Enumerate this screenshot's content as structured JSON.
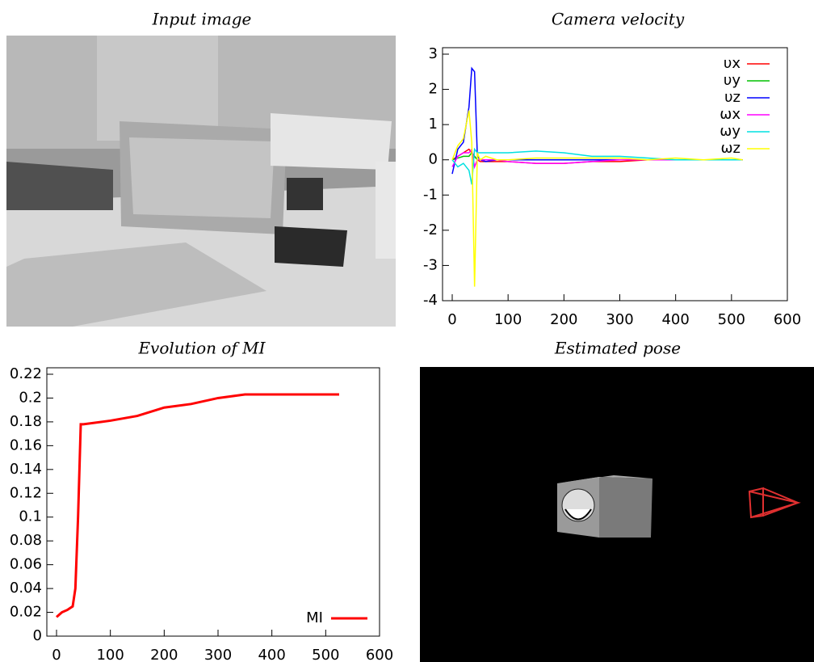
{
  "panels": {
    "input_image": {
      "title": "Input image"
    },
    "estimated_pose": {
      "title": "Estimated pose"
    }
  },
  "chart_data": [
    {
      "type": "line",
      "title": "Camera velocity",
      "x": [
        0,
        10,
        20,
        30,
        35,
        40,
        45,
        50,
        60,
        80,
        100,
        150,
        200,
        250,
        300,
        350,
        400,
        450,
        500,
        520
      ],
      "series": [
        {
          "name": "υx",
          "color": "#ff0000",
          "values": [
            0,
            0.1,
            0.2,
            0.3,
            0.2,
            0.1,
            0,
            -0.05,
            -0.05,
            -0.05,
            -0.05,
            -0.1,
            -0.1,
            -0.05,
            -0.05,
            0,
            0,
            0,
            0,
            0
          ]
        },
        {
          "name": "υy",
          "color": "#00c000",
          "values": [
            0,
            0.05,
            0.1,
            0.1,
            0.2,
            0.1,
            0,
            0,
            0,
            0,
            0,
            0,
            0,
            0,
            0,
            0,
            0,
            0,
            0,
            0
          ]
        },
        {
          "name": "υz",
          "color": "#0000ff",
          "values": [
            -0.4,
            0.3,
            0.5,
            1.5,
            2.6,
            2.5,
            0.1,
            0,
            -0.05,
            0,
            0,
            0,
            0,
            0,
            0,
            0,
            0,
            0,
            0,
            0
          ]
        },
        {
          "name": "ωx",
          "color": "#ff00ff",
          "values": [
            -0.2,
            0.1,
            0.2,
            0.2,
            0.3,
            -0.2,
            0,
            0,
            0,
            0,
            -0.05,
            -0.1,
            -0.1,
            -0.05,
            0,
            0,
            0,
            0,
            0,
            0
          ]
        },
        {
          "name": "ωy",
          "color": "#00e0e0",
          "values": [
            0,
            -0.2,
            -0.1,
            -0.3,
            -0.7,
            0.3,
            0.2,
            0.2,
            0.2,
            0.2,
            0.2,
            0.25,
            0.2,
            0.1,
            0.1,
            0.05,
            0,
            0,
            0,
            0
          ]
        },
        {
          "name": "ωz",
          "color": "#ffff00",
          "values": [
            0,
            0.4,
            0.6,
            1.4,
            0.5,
            -3.6,
            0.2,
            0,
            0.1,
            0,
            0,
            0.05,
            0.05,
            0.05,
            0.05,
            0,
            0.05,
            0,
            0.05,
            0
          ]
        }
      ],
      "xlim": [
        0,
        600
      ],
      "xticks": [
        0,
        100,
        200,
        300,
        400,
        500,
        600
      ],
      "ylim": [
        -4,
        3
      ],
      "yticks": [
        -4,
        -3,
        -2,
        -1,
        0,
        1,
        2,
        3
      ],
      "legend": "top-right"
    },
    {
      "type": "line",
      "title": "Evolution of MI",
      "x": [
        0,
        10,
        20,
        30,
        35,
        40,
        45,
        50,
        100,
        150,
        200,
        250,
        300,
        350,
        400,
        450,
        500,
        525
      ],
      "series": [
        {
          "name": "MI",
          "color": "#ff0000",
          "values": [
            0.016,
            0.02,
            0.022,
            0.025,
            0.04,
            0.1,
            0.178,
            0.178,
            0.181,
            0.185,
            0.192,
            0.195,
            0.2,
            0.203,
            0.203,
            0.203,
            0.203,
            0.203
          ]
        }
      ],
      "xlim": [
        0,
        600
      ],
      "xticks": [
        0,
        100,
        200,
        300,
        400,
        500,
        600
      ],
      "ylim": [
        0,
        0.22
      ],
      "yticks": [
        0,
        0.02,
        0.04,
        0.06,
        0.08,
        0.1,
        0.12,
        0.14,
        0.16,
        0.18,
        0.2,
        0.22
      ],
      "legend": "bottom-right"
    }
  ]
}
